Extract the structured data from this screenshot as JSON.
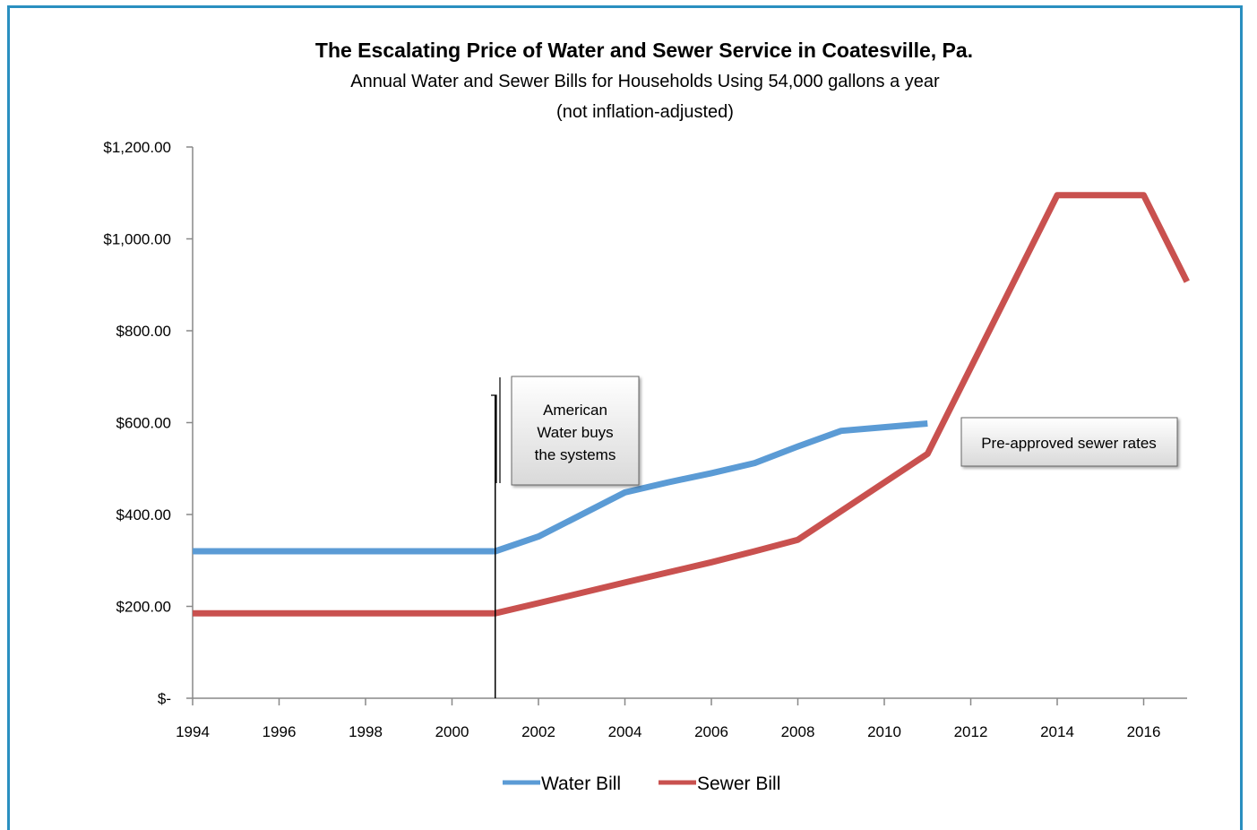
{
  "chart_data": {
    "type": "line",
    "title": "The Escalating Price of Water and Sewer Service in Coatesville, Pa.",
    "subtitle_lines": [
      "Annual Water and Sewer Bills for Households Using 54,000 gallons a year",
      "(not inflation-adjusted)"
    ],
    "xlabel": "",
    "ylabel": "",
    "xlim": [
      1994,
      2017
    ],
    "ylim": [
      0,
      1200
    ],
    "x_ticks": [
      "1994",
      "1996",
      "1998",
      "2000",
      "2002",
      "2004",
      "2006",
      "2008",
      "2010",
      "2012",
      "2014",
      "2016"
    ],
    "x_tick_values": [
      1994,
      1996,
      1998,
      2000,
      2002,
      2004,
      2006,
      2008,
      2010,
      2012,
      2014,
      2016
    ],
    "y_ticks": [
      "$-",
      "$200.00",
      "$400.00",
      "$600.00",
      "$800.00",
      "$1,000.00",
      "$1,200.00"
    ],
    "y_tick_values": [
      0,
      200,
      400,
      600,
      800,
      1000,
      1200
    ],
    "grid": false,
    "legend_position": "bottom",
    "series": [
      {
        "name": "Water Bill",
        "color": "#5b9bd5",
        "points": [
          [
            1994,
            320
          ],
          [
            2001,
            320
          ],
          [
            2002,
            352
          ],
          [
            2004,
            448
          ],
          [
            2005,
            470
          ],
          [
            2006,
            490
          ],
          [
            2007,
            512
          ],
          [
            2008,
            548
          ],
          [
            2009,
            582
          ],
          [
            2011,
            598
          ]
        ]
      },
      {
        "name": "Sewer Bill",
        "color": "#c9514f",
        "points": [
          [
            1994,
            185
          ],
          [
            2001,
            185
          ],
          [
            2002,
            207
          ],
          [
            2004,
            252
          ],
          [
            2006,
            296
          ],
          [
            2007,
            320
          ],
          [
            2008,
            345
          ],
          [
            2011,
            532
          ],
          [
            2014,
            1095
          ],
          [
            2016,
            1095
          ],
          [
            2017,
            907
          ]
        ]
      }
    ],
    "annotations": [
      {
        "text_lines": [
          "American",
          "Water buys",
          "the systems"
        ],
        "at_x": 2001
      },
      {
        "text_lines": [
          "Pre-approved sewer rates"
        ]
      }
    ]
  },
  "colors": {
    "frame_border": "#2a8fc0",
    "axis": "#888888",
    "callout_fill": "#eeeeee",
    "callout_border": "#666666"
  }
}
